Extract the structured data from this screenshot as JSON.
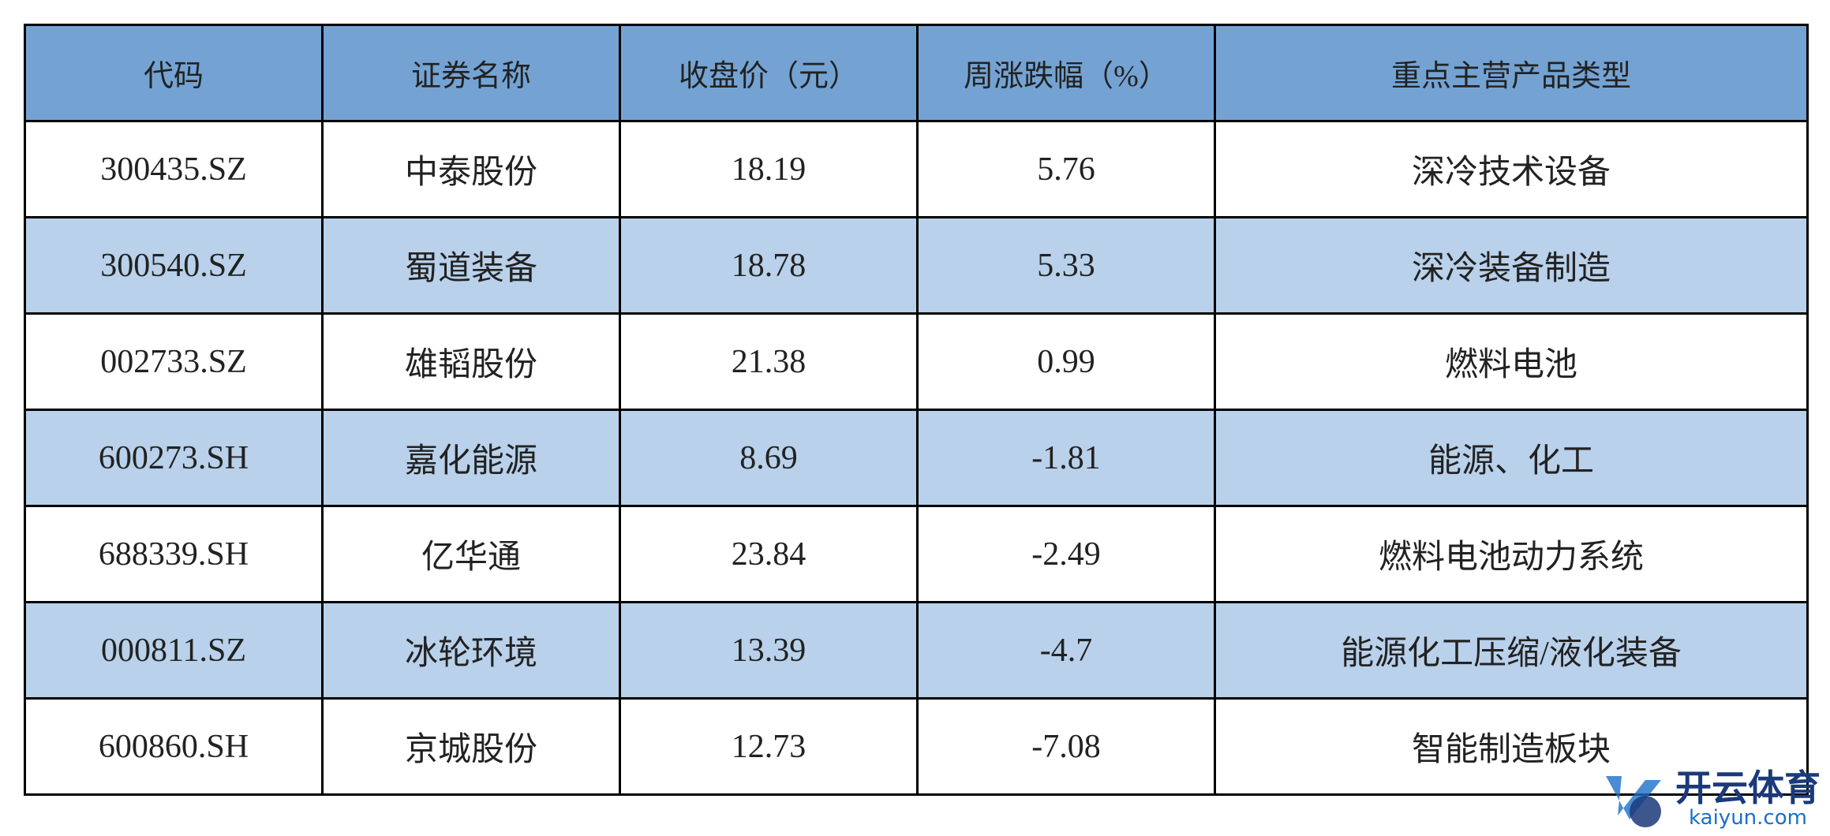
{
  "table": {
    "header": [
      "代码",
      "证券名称",
      "收盘价（元）",
      "周涨跌幅（%）",
      "重点主营产品类型"
    ],
    "rows": [
      [
        "300435.SZ",
        "中泰股份",
        18.19,
        5.76,
        "深冷技术设备"
      ],
      [
        "300540.SZ",
        "蜀道装备",
        18.78,
        5.33,
        "深冷装备制造"
      ],
      [
        "002733.SZ",
        "雄韬股份",
        21.38,
        0.99,
        "燃料电池"
      ],
      [
        "600273.SH",
        "嘉化能源",
        8.69,
        -1.81,
        "能源、化工"
      ],
      [
        "688339.SH",
        "亿华通",
        23.84,
        -2.49,
        "燃料电池动力系统"
      ],
      [
        "000811.SZ",
        "冰轮环境",
        13.39,
        -4.7,
        "能源化工压缩/液化装备"
      ],
      [
        "600860.SH",
        "京城股份",
        12.73,
        -7.08,
        "智能制造板块"
      ]
    ]
  },
  "watermark": {
    "title": "开云体育",
    "url": "kaiyun.com"
  }
}
